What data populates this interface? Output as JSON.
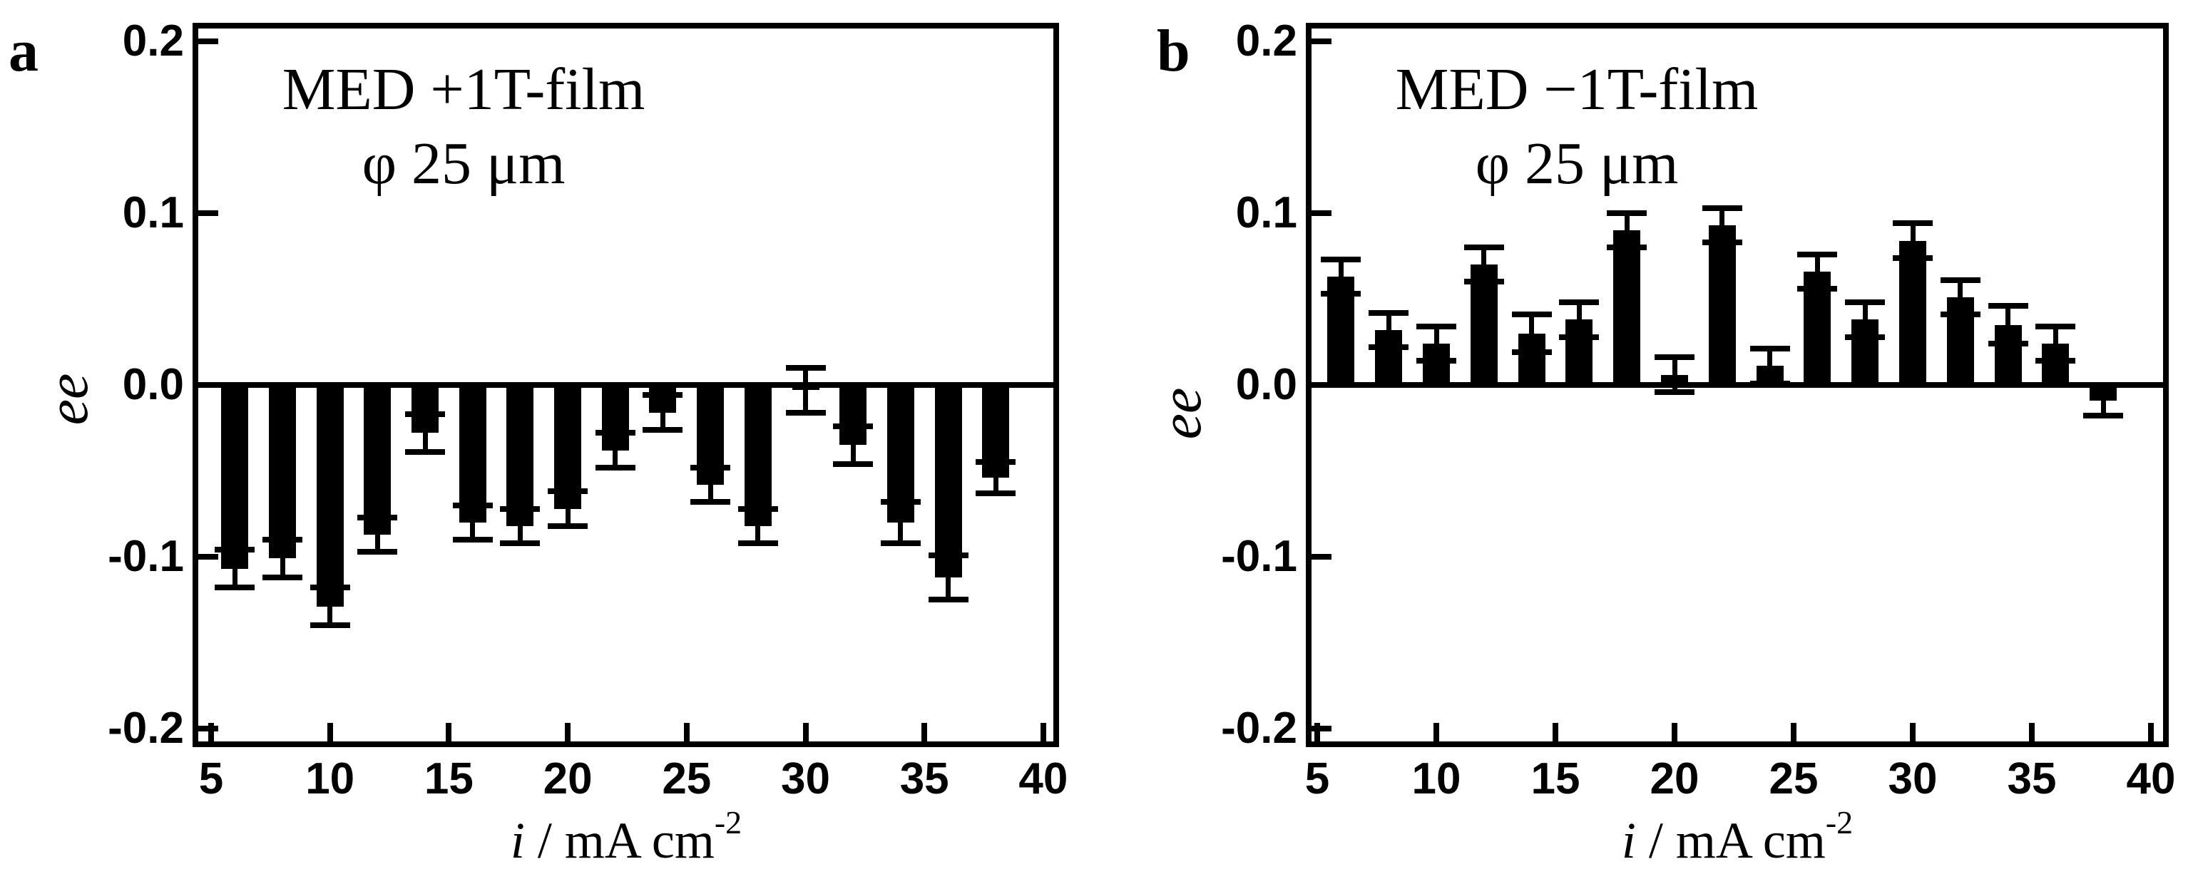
{
  "figure": {
    "background_color": "#ffffff",
    "ink_color": "#000000",
    "panels": [
      {
        "panel_letter": "a",
        "title_line1": "MED +1T-film",
        "title_line2": "φ 25 μm",
        "y_axis_label": "ee",
        "x_axis_label_variable": "i",
        "x_axis_label_units": " / mA cm",
        "x_axis_label_exponent": "-2",
        "y_tick_labels": [
          "0.2",
          "0.1",
          "0.0",
          "-0.1",
          "-0.2"
        ],
        "x_tick_labels": [
          "5",
          "10",
          "15",
          "20",
          "25",
          "30",
          "35",
          "40"
        ]
      },
      {
        "panel_letter": "b",
        "title_line1": "MED −1T-film",
        "title_line2": "φ 25 μm",
        "y_axis_label": "ee",
        "x_axis_label_variable": "i",
        "x_axis_label_units": " / mA cm",
        "x_axis_label_exponent": "-2",
        "y_tick_labels": [
          "0.2",
          "0.1",
          "0.0",
          "-0.1",
          "-0.2"
        ],
        "x_tick_labels": [
          "5",
          "10",
          "15",
          "20",
          "25",
          "30",
          "35",
          "40"
        ]
      }
    ]
  },
  "chart_data": [
    {
      "type": "bar",
      "title": "MED +1T-film φ 25 μm",
      "xlabel": "i / mA cm⁻²",
      "ylabel": "ee",
      "xlim": [
        4.2,
        40.7
      ],
      "ylim": [
        -0.211,
        0.211
      ],
      "grid": false,
      "bar_color": "#000000",
      "x_ticks": [
        5,
        10,
        15,
        20,
        25,
        30,
        35,
        40
      ],
      "y_ticks": [
        0.2,
        0.1,
        0.0,
        -0.1,
        -0.2
      ],
      "x": [
        6,
        8,
        10,
        12,
        14,
        16,
        18,
        20,
        22,
        24,
        26,
        28,
        30,
        32,
        34,
        36,
        38
      ],
      "values": [
        -0.107,
        -0.101,
        -0.129,
        -0.087,
        -0.028,
        -0.08,
        -0.082,
        -0.072,
        -0.038,
        -0.016,
        -0.058,
        -0.082,
        -0.003,
        -0.035,
        -0.08,
        -0.112,
        -0.054
      ],
      "errors": [
        0.011,
        0.011,
        0.011,
        0.01,
        0.011,
        0.01,
        0.01,
        0.01,
        0.01,
        0.01,
        0.01,
        0.01,
        0.013,
        0.011,
        0.012,
        0.013,
        0.009
      ]
    },
    {
      "type": "bar",
      "title": "MED −1T-film φ 25 μm",
      "xlabel": "i / mA cm⁻²",
      "ylabel": "ee",
      "xlim": [
        4.2,
        40.7
      ],
      "ylim": [
        -0.211,
        0.211
      ],
      "grid": false,
      "bar_color": "#000000",
      "x_ticks": [
        5,
        10,
        15,
        20,
        25,
        30,
        35,
        40
      ],
      "y_ticks": [
        0.2,
        0.1,
        0.0,
        -0.1,
        -0.2
      ],
      "x": [
        6,
        8,
        10,
        12,
        14,
        16,
        18,
        20,
        22,
        24,
        26,
        28,
        30,
        32,
        34,
        36,
        38
      ],
      "values": [
        0.063,
        0.032,
        0.024,
        0.07,
        0.03,
        0.038,
        0.09,
        0.006,
        0.093,
        0.011,
        0.066,
        0.038,
        0.084,
        0.051,
        0.035,
        0.024,
        -0.009
      ],
      "errors": [
        0.01,
        0.01,
        0.01,
        0.01,
        0.011,
        0.01,
        0.01,
        0.01,
        0.01,
        0.01,
        0.01,
        0.01,
        0.01,
        0.01,
        0.011,
        0.01,
        0.009
      ]
    }
  ]
}
